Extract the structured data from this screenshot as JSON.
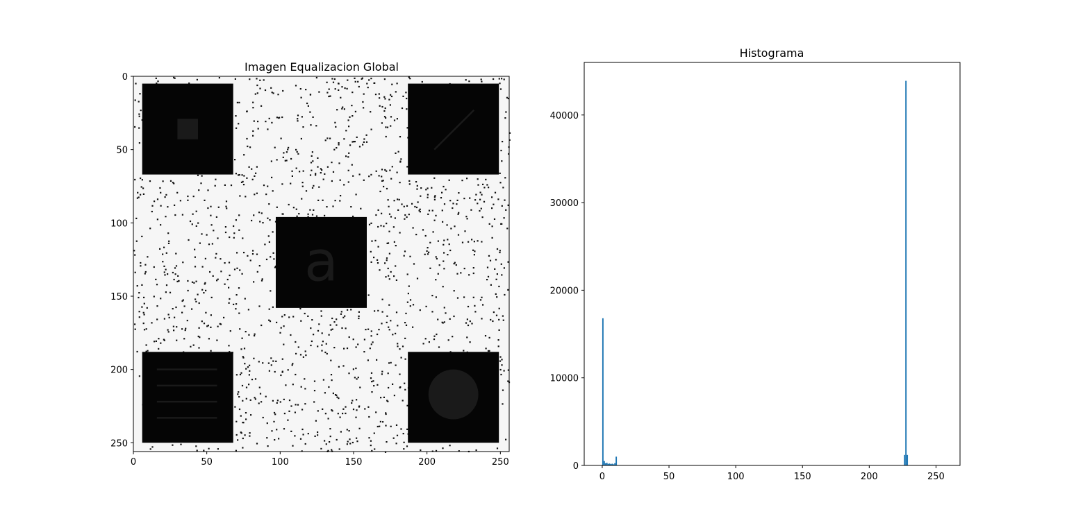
{
  "chart_data": [
    {
      "type": "image",
      "title": "Imagen Equalizacion Global",
      "image_size": [
        256,
        256
      ],
      "background": "near-white with sparse black salt-and-pepper noise",
      "xlim": [
        0,
        256
      ],
      "ylim": [
        256,
        0
      ],
      "x_ticks": [
        0,
        50,
        100,
        150,
        200,
        250
      ],
      "y_ticks": [
        0,
        50,
        100,
        150,
        200,
        250
      ],
      "x_tick_labels": [
        "0",
        "50",
        "100",
        "150",
        "200",
        "250"
      ],
      "y_tick_labels": [
        "0",
        "50",
        "100",
        "150",
        "200",
        "250"
      ],
      "colors": {
        "background": "#f6f6f6",
        "box": "#050505",
        "inner": "#1a1a1a",
        "noise": "#111111"
      },
      "boxes": [
        {
          "name": "top-left",
          "x": [
            6,
            68
          ],
          "y": [
            5,
            67
          ],
          "feature": "square",
          "feature_box": [
            30,
            29,
            44,
            43
          ]
        },
        {
          "name": "top-right",
          "x": [
            187,
            249
          ],
          "y": [
            5,
            67
          ],
          "feature": "diagonal-line",
          "feature_line": [
            205,
            50,
            232,
            23
          ]
        },
        {
          "name": "center",
          "x": [
            97,
            159
          ],
          "y": [
            96,
            158
          ],
          "feature": "letter",
          "feature_text": "a"
        },
        {
          "name": "bottom-left",
          "x": [
            6,
            68
          ],
          "y": [
            188,
            250
          ],
          "feature": "horizontal-lines",
          "feature_lines": [
            200,
            211,
            222,
            233
          ],
          "line_x": [
            16,
            57
          ]
        },
        {
          "name": "bottom-right",
          "x": [
            187,
            249
          ],
          "y": [
            188,
            250
          ],
          "feature": "circle",
          "feature_circle": [
            218,
            217,
            17
          ]
        }
      ]
    },
    {
      "type": "bar",
      "title": "Histograma",
      "xlim": [
        -13.5,
        268
      ],
      "ylim": [
        0,
        46000
      ],
      "x_ticks": [
        0,
        50,
        100,
        150,
        200,
        250
      ],
      "y_ticks": [
        0,
        10000,
        20000,
        30000,
        40000
      ],
      "x_tick_labels": [
        "0",
        "50",
        "100",
        "150",
        "200",
        "250"
      ],
      "y_tick_labels": [
        "0",
        "10000",
        "20000",
        "30000",
        "40000"
      ],
      "bar_color": "#1f77b4",
      "bins": [
        0,
        1,
        2,
        3,
        4,
        5,
        6,
        7,
        8,
        9,
        10,
        226,
        227,
        228
      ],
      "counts": [
        16800,
        500,
        250,
        300,
        180,
        220,
        150,
        200,
        130,
        260,
        1000,
        1200,
        43900,
        1200
      ]
    }
  ]
}
